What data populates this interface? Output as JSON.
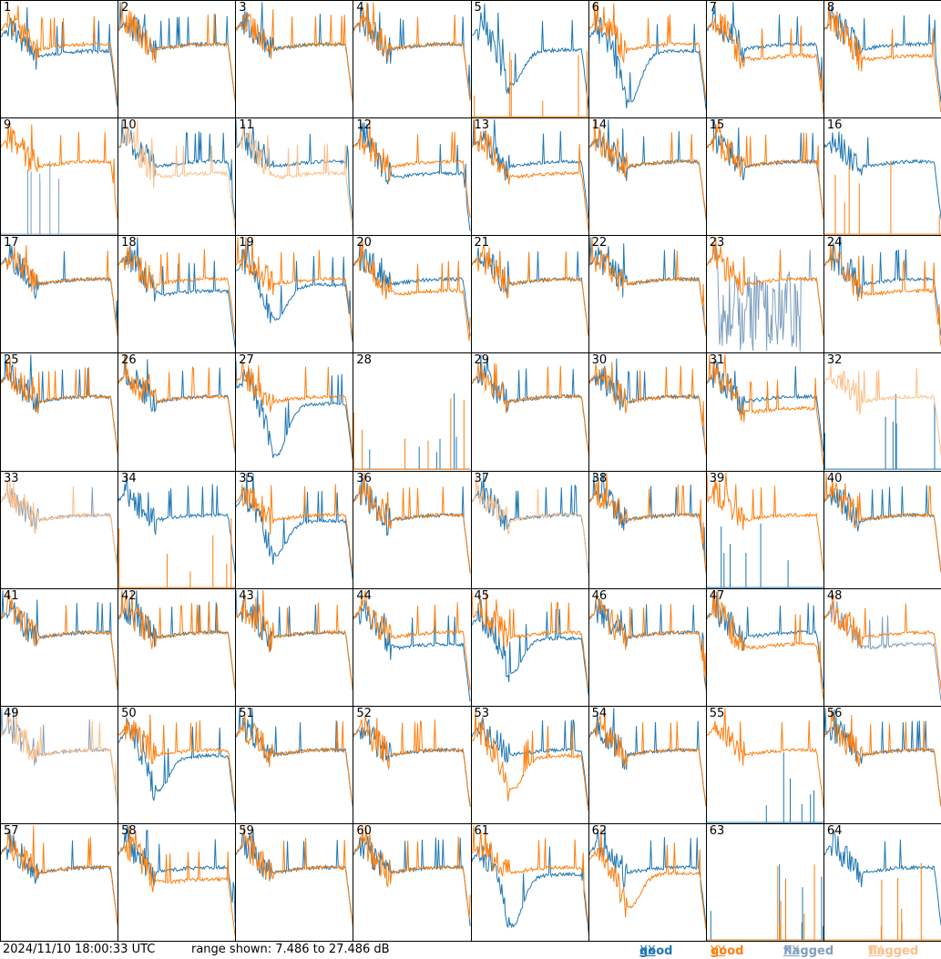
{
  "footer": {
    "timestamp": "2024/11/10 18:00:33 UTC",
    "range_text": "range shown: 7.486 to 27.486 dB"
  },
  "legend": [
    {
      "status": "good",
      "pol": "XX",
      "color": "#1f77b4"
    },
    {
      "status": "good",
      "pol": "YY",
      "color": "#ff7f0e"
    },
    {
      "status": "flagged",
      "pol": "XX",
      "color": "#7f9fbf"
    },
    {
      "status": "flagged",
      "pol": "YY",
      "color": "#ffbf87"
    }
  ],
  "chart_data": {
    "type": "line",
    "title": "",
    "ylim": [
      7.486,
      27.486
    ],
    "yunit": "dB",
    "rows": 8,
    "cols": 8,
    "panels": [
      {
        "label": "1",
        "xx": "good",
        "yy": "good",
        "yy_dip": true,
        "xx_profile": "mid"
      },
      {
        "label": "2",
        "xx": "good",
        "yy": "good"
      },
      {
        "label": "3",
        "xx": "good",
        "yy": "good"
      },
      {
        "label": "4",
        "xx": "good",
        "yy": "good"
      },
      {
        "label": "5",
        "xx": "good",
        "yy": "good",
        "yy_dead": true,
        "xx_profile": "dip"
      },
      {
        "label": "6",
        "xx": "good",
        "yy": "good",
        "xx_profile": "deepdip"
      },
      {
        "label": "7",
        "xx": "good",
        "yy": "good",
        "yy_profile": "low"
      },
      {
        "label": "8",
        "xx": "good",
        "yy": "good",
        "yy_profile": "low"
      },
      {
        "label": "9",
        "xx": "flagged",
        "yy": "good",
        "xx_dead": true
      },
      {
        "label": "10",
        "xx": "good",
        "yy": "flagged",
        "yy_profile": "low"
      },
      {
        "label": "11",
        "xx": "good",
        "yy": "flagged",
        "yy_profile": "low"
      },
      {
        "label": "12",
        "xx": "good",
        "yy": "good",
        "xx_profile": "low"
      },
      {
        "label": "13",
        "xx": "good",
        "yy": "good",
        "yy_profile": "low"
      },
      {
        "label": "14",
        "xx": "good",
        "yy": "good"
      },
      {
        "label": "15",
        "xx": "good",
        "yy": "good"
      },
      {
        "label": "16",
        "xx": "good",
        "yy": "good",
        "yy_dead": true
      },
      {
        "label": "17",
        "xx": "good",
        "yy": "good"
      },
      {
        "label": "18",
        "xx": "good",
        "yy": "good",
        "xx_profile": "low"
      },
      {
        "label": "19",
        "xx": "good",
        "yy": "good",
        "xx_profile": "dip"
      },
      {
        "label": "20",
        "xx": "good",
        "yy": "good",
        "yy_profile": "low"
      },
      {
        "label": "21",
        "xx": "good",
        "yy": "good"
      },
      {
        "label": "22",
        "xx": "good",
        "yy": "good"
      },
      {
        "label": "23",
        "xx": "flagged",
        "yy": "good",
        "xx_noise": true
      },
      {
        "label": "24",
        "xx": "good",
        "yy": "good",
        "yy_profile": "low"
      },
      {
        "label": "25",
        "xx": "good",
        "yy": "good"
      },
      {
        "label": "26",
        "xx": "good",
        "yy": "good"
      },
      {
        "label": "27",
        "xx": "good",
        "yy": "good",
        "xx_profile": "deepdip"
      },
      {
        "label": "28",
        "xx": "good",
        "yy": "good",
        "xx_dead": true,
        "yy_dead": true,
        "spiky": true
      },
      {
        "label": "29",
        "xx": "good",
        "yy": "good"
      },
      {
        "label": "30",
        "xx": "good",
        "yy": "good"
      },
      {
        "label": "31",
        "xx": "good",
        "yy": "good",
        "yy_profile": "low"
      },
      {
        "label": "32",
        "xx": "good",
        "yy": "flagged",
        "xx_dead": true
      },
      {
        "label": "33",
        "xx": "flagged",
        "yy": "flagged"
      },
      {
        "label": "34",
        "xx": "good",
        "yy": "good",
        "yy_dead": true,
        "spiky": true
      },
      {
        "label": "35",
        "xx": "good",
        "yy": "good",
        "xx_profile": "dip"
      },
      {
        "label": "36",
        "xx": "good",
        "yy": "good"
      },
      {
        "label": "37",
        "xx": "good",
        "yy": "flagged"
      },
      {
        "label": "38",
        "xx": "good",
        "yy": "good"
      },
      {
        "label": "39",
        "xx": "good",
        "yy": "good",
        "xx_dead": true
      },
      {
        "label": "40",
        "xx": "good",
        "yy": "good"
      },
      {
        "label": "41",
        "xx": "good",
        "yy": "good"
      },
      {
        "label": "42",
        "xx": "good",
        "yy": "good"
      },
      {
        "label": "43",
        "xx": "good",
        "yy": "good"
      },
      {
        "label": "44",
        "xx": "good",
        "yy": "good",
        "xx_profile": "low"
      },
      {
        "label": "45",
        "xx": "good",
        "yy": "good",
        "xx_profile": "dip"
      },
      {
        "label": "46",
        "xx": "good",
        "yy": "good"
      },
      {
        "label": "47",
        "xx": "good",
        "yy": "good",
        "yy_profile": "low"
      },
      {
        "label": "48",
        "xx": "flagged",
        "yy": "good",
        "xx_profile": "low"
      },
      {
        "label": "49",
        "xx": "flagged",
        "yy": "flagged"
      },
      {
        "label": "50",
        "xx": "good",
        "yy": "good",
        "xx_profile": "dip"
      },
      {
        "label": "51",
        "xx": "good",
        "yy": "good"
      },
      {
        "label": "52",
        "xx": "good",
        "yy": "good"
      },
      {
        "label": "53",
        "xx": "good",
        "yy": "good",
        "yy_profile": "dip"
      },
      {
        "label": "54",
        "xx": "good",
        "yy": "good"
      },
      {
        "label": "55",
        "xx": "good",
        "yy": "good",
        "xx_dead": true
      },
      {
        "label": "56",
        "xx": "good",
        "yy": "good"
      },
      {
        "label": "57",
        "xx": "good",
        "yy": "good"
      },
      {
        "label": "58",
        "xx": "good",
        "yy": "good",
        "yy_profile": "low"
      },
      {
        "label": "59",
        "xx": "good",
        "yy": "good"
      },
      {
        "label": "60",
        "xx": "good",
        "yy": "good"
      },
      {
        "label": "61",
        "xx": "good",
        "yy": "good",
        "xx_profile": "deepdip"
      },
      {
        "label": "62",
        "xx": "good",
        "yy": "good",
        "yy_profile": "dip"
      },
      {
        "label": "63",
        "xx": "good",
        "yy": "good",
        "xx_dead": true,
        "yy_dead": true,
        "spiky": true
      },
      {
        "label": "64",
        "xx": "good",
        "yy": "good",
        "yy_dead": true
      }
    ]
  }
}
